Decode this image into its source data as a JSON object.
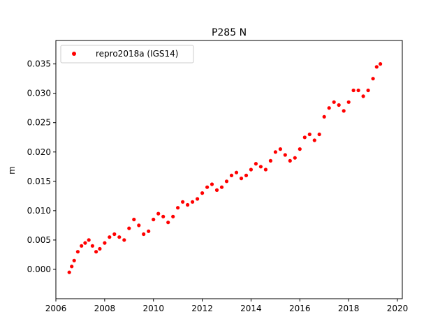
{
  "chart_data": {
    "type": "scatter",
    "title": "P285 N",
    "xlabel": "",
    "ylabel": "m",
    "xlim": [
      2006.0,
      2020.2
    ],
    "ylim": [
      -0.005,
      0.039
    ],
    "xticks": [
      2006,
      2008,
      2010,
      2012,
      2014,
      2016,
      2018,
      2020
    ],
    "xtick_labels": [
      "2006",
      "2008",
      "2010",
      "2012",
      "2014",
      "2016",
      "2018",
      "2020"
    ],
    "yticks": [
      0.0,
      0.005,
      0.01,
      0.015,
      0.02,
      0.025,
      0.03,
      0.035
    ],
    "ytick_labels": [
      "0.000",
      "0.005",
      "0.010",
      "0.015",
      "0.020",
      "0.025",
      "0.030",
      "0.035"
    ],
    "grid": false,
    "legend": {
      "position": "top-left",
      "entries": [
        "repro2018a (IGS14)"
      ]
    },
    "series": [
      {
        "name": "repro2018a (IGS14)",
        "color": "#ff0000",
        "marker": "circle",
        "points": [
          [
            2006.55,
            -0.0005
          ],
          [
            2006.65,
            0.0005
          ],
          [
            2006.75,
            0.0015
          ],
          [
            2006.9,
            0.003
          ],
          [
            2007.05,
            0.004
          ],
          [
            2007.2,
            0.0045
          ],
          [
            2007.35,
            0.005
          ],
          [
            2007.5,
            0.004
          ],
          [
            2007.65,
            0.003
          ],
          [
            2007.8,
            0.0035
          ],
          [
            2008.0,
            0.0045
          ],
          [
            2008.2,
            0.0055
          ],
          [
            2008.4,
            0.006
          ],
          [
            2008.6,
            0.0055
          ],
          [
            2008.8,
            0.005
          ],
          [
            2009.0,
            0.007
          ],
          [
            2009.2,
            0.0085
          ],
          [
            2009.4,
            0.0075
          ],
          [
            2009.6,
            0.006
          ],
          [
            2009.8,
            0.0065
          ],
          [
            2010.0,
            0.0085
          ],
          [
            2010.2,
            0.0095
          ],
          [
            2010.4,
            0.009
          ],
          [
            2010.6,
            0.008
          ],
          [
            2010.8,
            0.009
          ],
          [
            2011.0,
            0.0105
          ],
          [
            2011.2,
            0.0115
          ],
          [
            2011.4,
            0.011
          ],
          [
            2011.6,
            0.0115
          ],
          [
            2011.8,
            0.012
          ],
          [
            2012.0,
            0.013
          ],
          [
            2012.2,
            0.014
          ],
          [
            2012.4,
            0.0145
          ],
          [
            2012.6,
            0.0135
          ],
          [
            2012.8,
            0.014
          ],
          [
            2013.0,
            0.015
          ],
          [
            2013.2,
            0.016
          ],
          [
            2013.4,
            0.0165
          ],
          [
            2013.6,
            0.0155
          ],
          [
            2013.8,
            0.016
          ],
          [
            2014.0,
            0.017
          ],
          [
            2014.2,
            0.018
          ],
          [
            2014.4,
            0.0175
          ],
          [
            2014.6,
            0.017
          ],
          [
            2014.8,
            0.0185
          ],
          [
            2015.0,
            0.02
          ],
          [
            2015.2,
            0.0205
          ],
          [
            2015.4,
            0.0195
          ],
          [
            2015.6,
            0.0185
          ],
          [
            2015.8,
            0.019
          ],
          [
            2016.0,
            0.0205
          ],
          [
            2016.2,
            0.0225
          ],
          [
            2016.4,
            0.023
          ],
          [
            2016.6,
            0.022
          ],
          [
            2016.8,
            0.023
          ],
          [
            2017.0,
            0.026
          ],
          [
            2017.2,
            0.0275
          ],
          [
            2017.4,
            0.0285
          ],
          [
            2017.6,
            0.028
          ],
          [
            2017.8,
            0.027
          ],
          [
            2018.0,
            0.0285
          ],
          [
            2018.2,
            0.0305
          ],
          [
            2018.4,
            0.0305
          ],
          [
            2018.6,
            0.0295
          ],
          [
            2018.8,
            0.0305
          ],
          [
            2019.0,
            0.0325
          ],
          [
            2019.15,
            0.0345
          ],
          [
            2019.3,
            0.035
          ]
        ]
      }
    ]
  }
}
